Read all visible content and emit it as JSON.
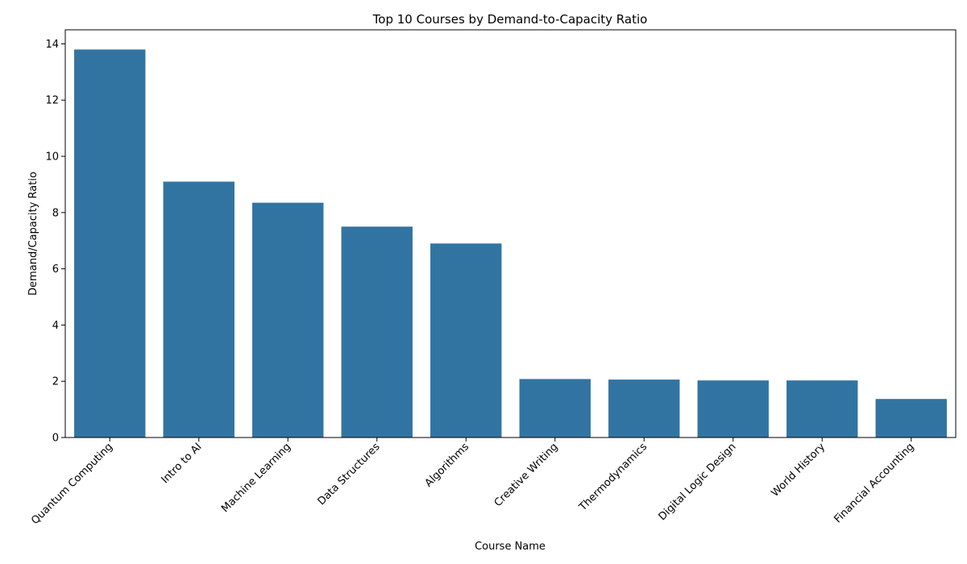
{
  "chart_data": {
    "type": "bar",
    "title": "Top 10 Courses by Demand-to-Capacity Ratio",
    "xlabel": "Course Name",
    "ylabel": "Demand/Capacity Ratio",
    "categories": [
      "Quantum Computing",
      "Intro to AI",
      "Machine Learning",
      "Data Structures",
      "Algorithms",
      "Creative Writing",
      "Thermodynamics",
      "Digital Logic Design",
      "World History",
      "Financial Accounting"
    ],
    "values": [
      13.8,
      9.1,
      8.35,
      7.5,
      6.9,
      2.08,
      2.06,
      2.03,
      2.03,
      1.37
    ],
    "ylim": [
      0,
      14.5
    ],
    "yticks": [
      0,
      2,
      4,
      6,
      8,
      10,
      12,
      14
    ],
    "bar_color": "#3274a1",
    "grid": false,
    "legend": "none"
  }
}
